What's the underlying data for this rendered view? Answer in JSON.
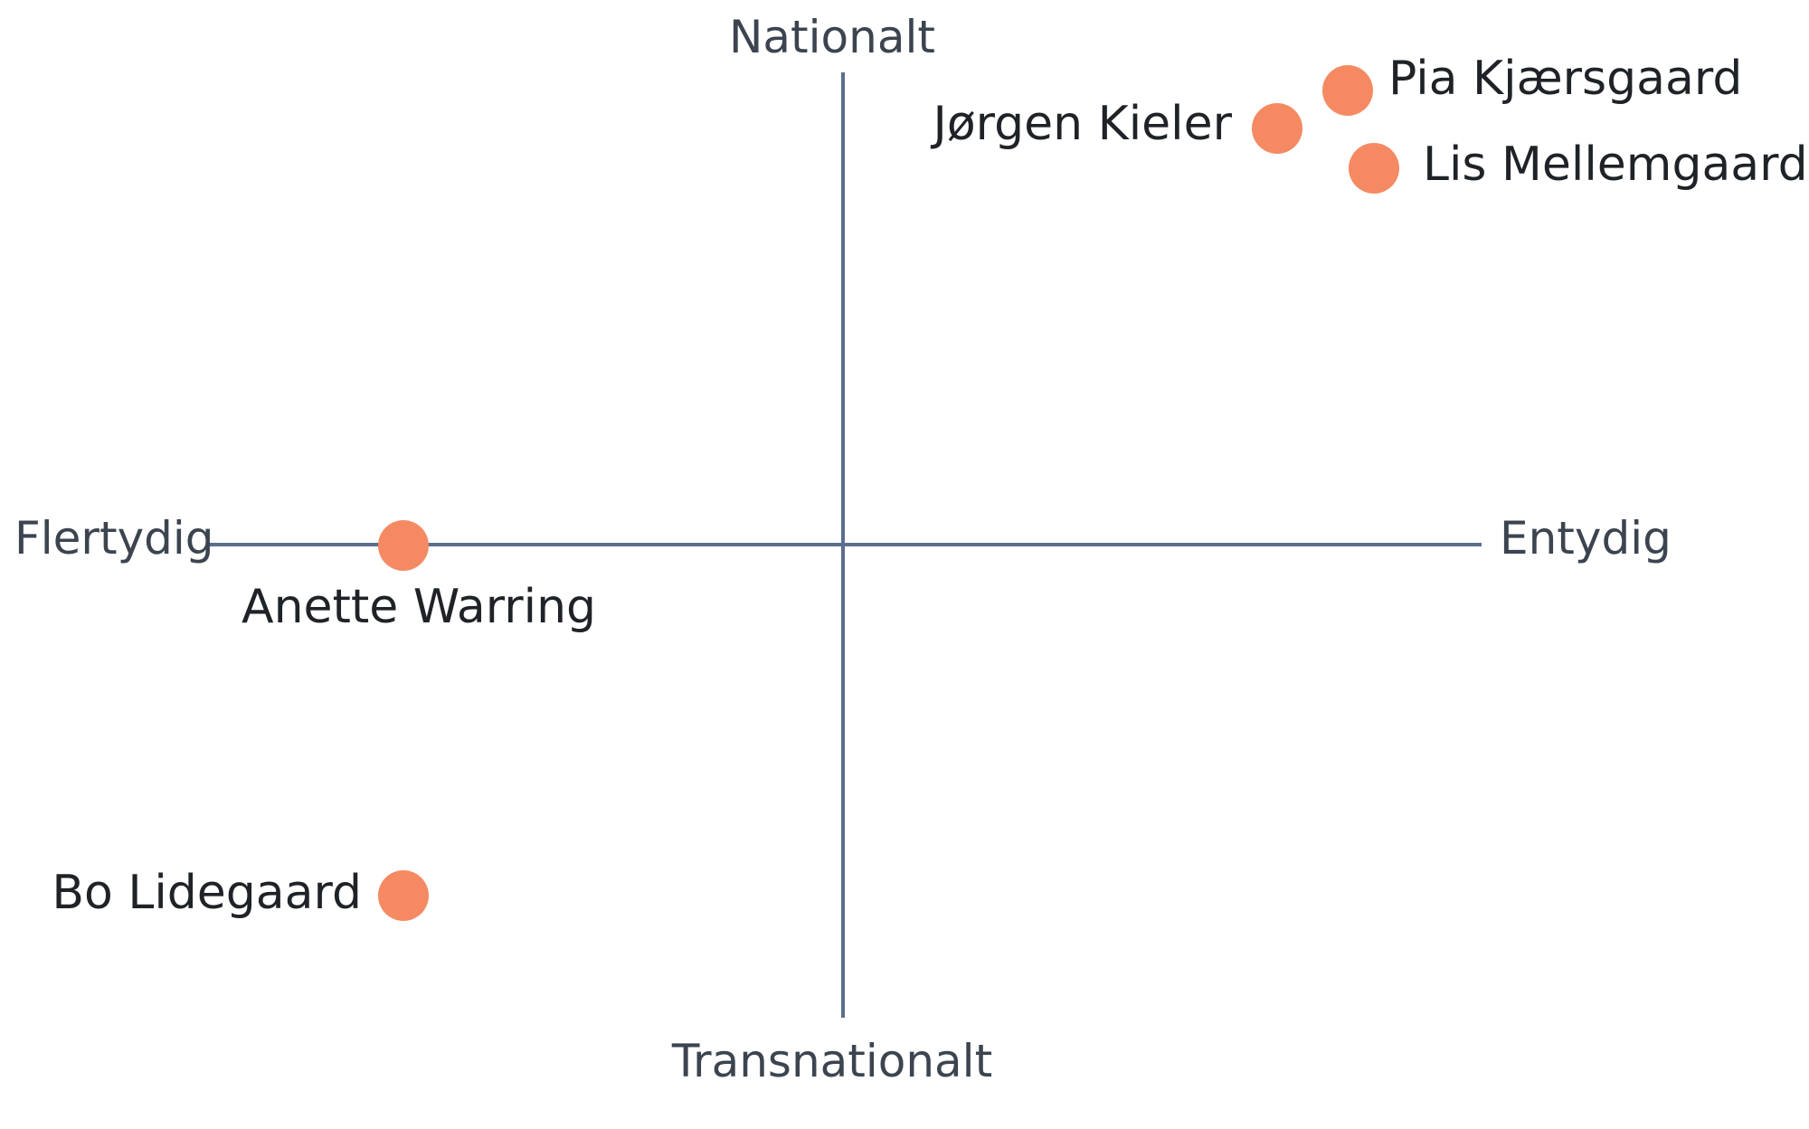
{
  "axes": {
    "top_label": "Nationalt",
    "bottom_label": "Transnationalt",
    "left_label": "Flertydig",
    "right_label": "Entydig"
  },
  "people": [
    {
      "name": "Pia Kjærsgaard"
    },
    {
      "name": "Jørgen Kieler"
    },
    {
      "name": "Lis Mellemgaard"
    },
    {
      "name": "Anette Warring"
    },
    {
      "name": "Bo Lidegaard"
    }
  ],
  "colors": {
    "axis": "#5a6f8f",
    "dot": "#f58a62",
    "text": "#1f2328"
  }
}
